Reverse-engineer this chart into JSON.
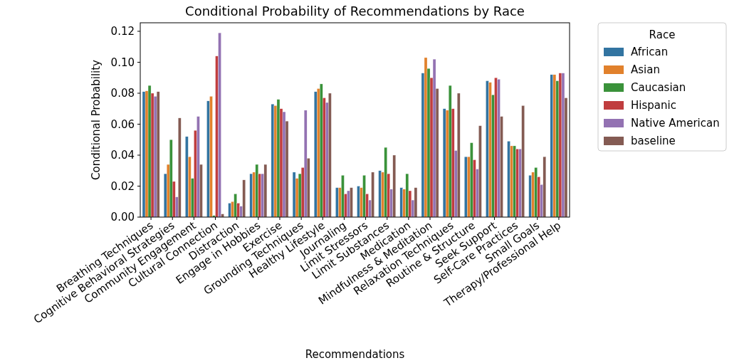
{
  "chart_data": {
    "type": "bar",
    "title": "Conditional Probability of Recommendations by Race",
    "xlabel": "Recommendations",
    "ylabel": "Conditional Probability",
    "legend_title": "Race",
    "legend": "right",
    "grid": false,
    "categories": [
      "Breathing Techniques",
      "Cognitive Behavioral Strategies",
      "Community Engagement",
      "Cultural Connection",
      "Distraction",
      "Engage in Hobbies",
      "Exercise",
      "Grounding Techniques",
      "Healthy Lifestyle",
      "Journaling",
      "Limit Stressors",
      "Limit Substances",
      "Medication",
      "Mindfulness & Meditation",
      "Relaxation Techniques",
      "Routine & Structure",
      "Seek Support",
      "Self-Care Practices",
      "Small Goals",
      "Therapy/Professional Help"
    ],
    "ylim": [
      0,
      0.1255
    ],
    "yticks": [
      {
        "value": 0,
        "label": "0.00"
      },
      {
        "value": 0.02,
        "label": "0.02"
      },
      {
        "value": 0.04,
        "label": "0.04"
      },
      {
        "value": 0.06,
        "label": "0.06"
      },
      {
        "value": 0.08,
        "label": "0.08"
      },
      {
        "value": 0.1,
        "label": "0.10"
      },
      {
        "value": 0.12,
        "label": "0.12"
      }
    ],
    "series": [
      {
        "name": "African",
        "color": "#3274a1",
        "values": [
          0.081,
          0.028,
          0.052,
          0.075,
          0.009,
          0.028,
          0.073,
          0.029,
          0.081,
          0.019,
          0.02,
          0.03,
          0.019,
          0.093,
          0.07,
          0.039,
          0.088,
          0.049,
          0.027,
          0.092
        ]
      },
      {
        "name": "Asian",
        "color": "#e1812c",
        "values": [
          0.0815,
          0.034,
          0.039,
          0.078,
          0.01,
          0.029,
          0.072,
          0.025,
          0.083,
          0.019,
          0.019,
          0.029,
          0.018,
          0.103,
          0.069,
          0.039,
          0.087,
          0.046,
          0.029,
          0.092
        ]
      },
      {
        "name": "Caucasian",
        "color": "#3a923a",
        "values": [
          0.085,
          0.05,
          0.025,
          0.001,
          0.015,
          0.034,
          0.076,
          0.028,
          0.086,
          0.027,
          0.027,
          0.045,
          0.028,
          0.096,
          0.085,
          0.048,
          0.079,
          0.046,
          0.032,
          0.088
        ]
      },
      {
        "name": "Hispanic",
        "color": "#c03d3e",
        "values": [
          0.08,
          0.023,
          0.056,
          0.104,
          0.009,
          0.028,
          0.07,
          0.032,
          0.077,
          0.015,
          0.015,
          0.028,
          0.017,
          0.09,
          0.07,
          0.037,
          0.09,
          0.044,
          0.026,
          0.093
        ]
      },
      {
        "name": "Native American",
        "color": "#9372b2",
        "values": [
          0.078,
          0.013,
          0.065,
          0.119,
          0.007,
          0.028,
          0.068,
          0.069,
          0.074,
          0.017,
          0.011,
          0.018,
          0.011,
          0.102,
          0.043,
          0.031,
          0.089,
          0.044,
          0.021,
          0.093
        ]
      },
      {
        "name": "baseline",
        "color": "#845b53",
        "values": [
          0.081,
          0.064,
          0.034,
          0.002,
          0.024,
          0.034,
          0.062,
          0.038,
          0.08,
          0.019,
          0.029,
          0.04,
          0.019,
          0.083,
          0.08,
          0.059,
          0.065,
          0.072,
          0.039,
          0.077
        ]
      }
    ]
  }
}
